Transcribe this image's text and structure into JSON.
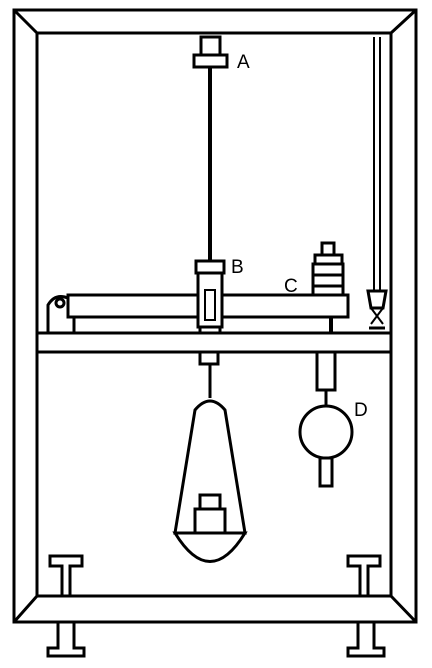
{
  "labels": {
    "a": "A",
    "b": "B",
    "c": "C",
    "d": "D"
  },
  "colors": {
    "ink": "#000000",
    "paper": "#ffffff"
  }
}
